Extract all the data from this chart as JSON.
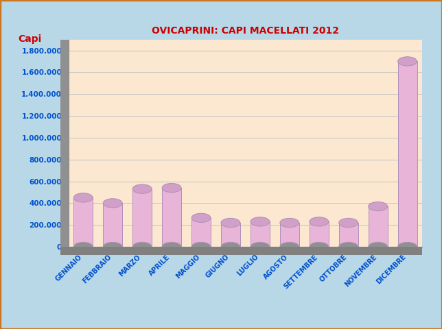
{
  "title": "OVICAPRINI: CAPI MACELLATI 2012",
  "capi_label": "Capi",
  "categories": [
    "GENNAIO",
    "FEBBRAIO",
    "MARZO",
    "APRILE",
    "MAGGIO",
    "GIUGNO",
    "LUGLIO",
    "AGOSTO",
    "SETTEMBRE",
    "OTTOBRE",
    "NOVEMBRE",
    "DICEMBRE"
  ],
  "values": [
    450000,
    400000,
    530000,
    540000,
    265000,
    220000,
    230000,
    220000,
    230000,
    220000,
    370000,
    1700000
  ],
  "bar_color_face": "#e8b4d8",
  "bar_color_edge": "#b090b8",
  "bar_color_top": "#d0a0c8",
  "bar_color_shadow": "#c8a0c0",
  "ylim": [
    0,
    1900000
  ],
  "yticks": [
    0,
    200000,
    400000,
    600000,
    800000,
    1000000,
    1200000,
    1400000,
    1600000,
    1800000
  ],
  "ytick_labels": [
    "0",
    "200.000",
    "400.000",
    "600.000",
    "800.000",
    "1.000.000",
    "1.200.000",
    "1.400.000",
    "1.600.000",
    "1.800.000"
  ],
  "background_color": "#fce8d0",
  "outer_background": "#b8d8e8",
  "wall_color": "#909090",
  "floor_color": "#808080",
  "title_color": "#cc0000",
  "capi_color": "#cc0000",
  "xlabel_color": "#0050cc",
  "ytick_color": "#0050cc",
  "grid_color": "#c0c0c0",
  "outer_border_color": "#cc7722"
}
